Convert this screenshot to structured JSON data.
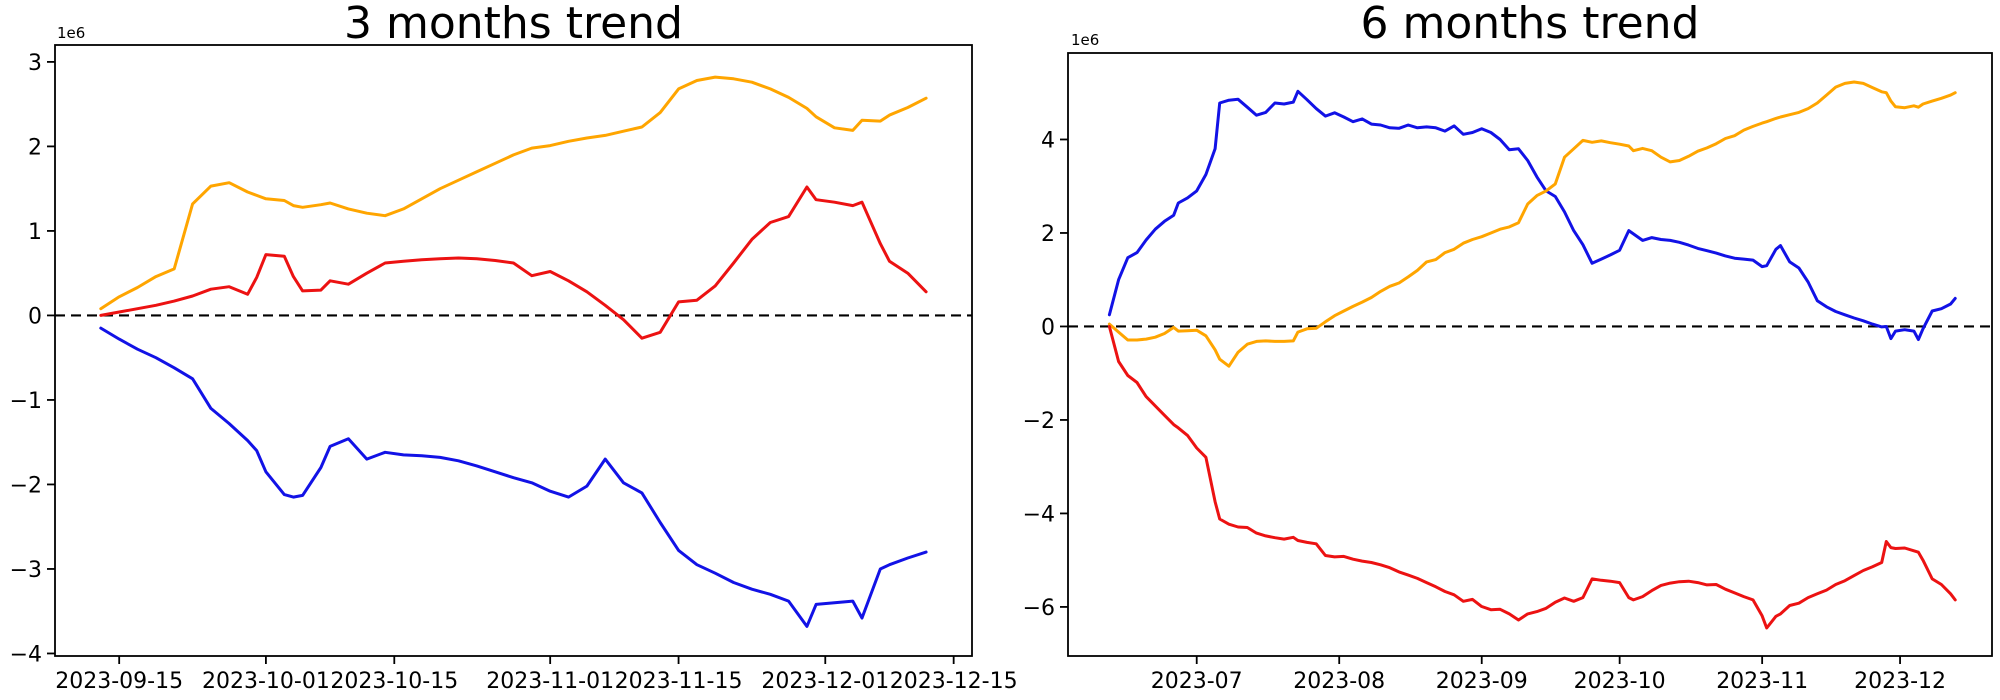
{
  "figure": {
    "background": "#ffffff"
  },
  "chart_data": [
    {
      "type": "line",
      "title": "3 months trend",
      "y_offset_label": "1e6",
      "y_unit_multiplier": 1000000,
      "xlim": [
        "2023-09-08",
        "2023-12-17"
      ],
      "ylim": [
        -4.03,
        3.2
      ],
      "grid": false,
      "legend": "none",
      "zero_line": {
        "show": true,
        "style": "dashed",
        "color": "#000000"
      },
      "x_ticks": [
        {
          "label": "2023-09-15",
          "date": "2023-09-15"
        },
        {
          "label": "2023-10-01",
          "date": "2023-10-01"
        },
        {
          "label": "2023-10-15",
          "date": "2023-10-15"
        },
        {
          "label": "2023-11-01",
          "date": "2023-11-01"
        },
        {
          "label": "2023-11-15",
          "date": "2023-11-15"
        },
        {
          "label": "2023-12-01",
          "date": "2023-12-01"
        },
        {
          "label": "2023-12-15",
          "date": "2023-12-15"
        }
      ],
      "y_ticks": [
        3,
        2,
        1,
        0,
        -1,
        -2,
        -3,
        -4
      ],
      "dates": [
        "2023-09-13",
        "2023-09-15",
        "2023-09-17",
        "2023-09-19",
        "2023-09-21",
        "2023-09-23",
        "2023-09-25",
        "2023-09-27",
        "2023-09-29",
        "2023-09-30",
        "2023-10-01",
        "2023-10-03",
        "2023-10-04",
        "2023-10-05",
        "2023-10-07",
        "2023-10-08",
        "2023-10-10",
        "2023-10-12",
        "2023-10-14",
        "2023-10-16",
        "2023-10-18",
        "2023-10-20",
        "2023-10-22",
        "2023-10-24",
        "2023-10-26",
        "2023-10-28",
        "2023-10-30",
        "2023-11-01",
        "2023-11-03",
        "2023-11-05",
        "2023-11-07",
        "2023-11-09",
        "2023-11-11",
        "2023-11-13",
        "2023-11-15",
        "2023-11-17",
        "2023-11-19",
        "2023-11-21",
        "2023-11-23",
        "2023-11-25",
        "2023-11-27",
        "2023-11-29",
        "2023-11-30",
        "2023-12-02",
        "2023-12-04",
        "2023-12-05",
        "2023-12-07",
        "2023-12-08",
        "2023-12-10",
        "2023-12-12"
      ],
      "series": [
        {
          "name": "series-orange",
          "color": "#ffa500",
          "values": [
            0.08,
            0.22,
            0.33,
            0.46,
            0.55,
            1.32,
            1.53,
            1.57,
            1.46,
            1.42,
            1.38,
            1.36,
            1.3,
            1.28,
            1.31,
            1.33,
            1.26,
            1.21,
            1.18,
            1.26,
            1.38,
            1.5,
            1.6,
            1.7,
            1.8,
            1.9,
            1.98,
            2.01,
            2.06,
            2.1,
            2.13,
            2.18,
            2.23,
            2.4,
            2.68,
            2.78,
            2.82,
            2.8,
            2.76,
            2.68,
            2.58,
            2.45,
            2.35,
            2.22,
            2.19,
            2.31,
            2.3,
            2.37,
            2.46,
            2.57
          ]
        },
        {
          "name": "series-red",
          "color": "#ec1212",
          "values": [
            0.0,
            0.04,
            0.08,
            0.12,
            0.17,
            0.23,
            0.31,
            0.34,
            0.25,
            0.45,
            0.72,
            0.7,
            0.46,
            0.29,
            0.3,
            0.41,
            0.37,
            0.5,
            0.62,
            0.64,
            0.66,
            0.67,
            0.68,
            0.67,
            0.65,
            0.62,
            0.47,
            0.52,
            0.41,
            0.28,
            0.12,
            -0.05,
            -0.27,
            -0.2,
            0.16,
            0.18,
            0.35,
            0.62,
            0.9,
            1.1,
            1.17,
            1.52,
            1.37,
            1.34,
            1.3,
            1.34,
            0.85,
            0.64,
            0.5,
            0.28
          ]
        },
        {
          "name": "series-blue",
          "color": "#1212e6",
          "values": [
            -0.15,
            -0.28,
            -0.4,
            -0.5,
            -0.62,
            -0.75,
            -1.1,
            -1.28,
            -1.48,
            -1.6,
            -1.85,
            -2.12,
            -2.15,
            -2.13,
            -1.8,
            -1.55,
            -1.46,
            -1.7,
            -1.62,
            -1.65,
            -1.66,
            -1.68,
            -1.72,
            -1.78,
            -1.85,
            -1.92,
            -1.98,
            -2.08,
            -2.15,
            -2.02,
            -1.7,
            -1.98,
            -2.1,
            -2.45,
            -2.78,
            -2.95,
            -3.05,
            -3.16,
            -3.24,
            -3.3,
            -3.38,
            -3.68,
            -3.42,
            -3.4,
            -3.38,
            -3.58,
            -3.0,
            -2.95,
            -2.87,
            -2.8
          ]
        }
      ]
    },
    {
      "type": "line",
      "title": "6 months trend",
      "y_offset_label": "1e6",
      "y_unit_multiplier": 1000000,
      "xlim": [
        "2023-06-03",
        "2023-12-21"
      ],
      "ylim": [
        -7.05,
        5.85
      ],
      "grid": false,
      "legend": "none",
      "zero_line": {
        "show": true,
        "style": "dashed",
        "color": "#000000"
      },
      "x_ticks": [
        {
          "label": "2023-07",
          "date": "2023-07-01"
        },
        {
          "label": "2023-08",
          "date": "2023-08-01"
        },
        {
          "label": "2023-09",
          "date": "2023-09-01"
        },
        {
          "label": "2023-10",
          "date": "2023-10-01"
        },
        {
          "label": "2023-11",
          "date": "2023-11-01"
        },
        {
          "label": "2023-12",
          "date": "2023-12-01"
        }
      ],
      "y_ticks": [
        4,
        2,
        0,
        -2,
        -4,
        -6
      ],
      "dates": [
        "2023-06-12",
        "2023-06-14",
        "2023-06-16",
        "2023-06-18",
        "2023-06-20",
        "2023-06-22",
        "2023-06-24",
        "2023-06-26",
        "2023-06-27",
        "2023-06-29",
        "2023-07-01",
        "2023-07-03",
        "2023-07-05",
        "2023-07-06",
        "2023-07-08",
        "2023-07-10",
        "2023-07-12",
        "2023-07-14",
        "2023-07-16",
        "2023-07-18",
        "2023-07-20",
        "2023-07-22",
        "2023-07-23",
        "2023-07-25",
        "2023-07-27",
        "2023-07-29",
        "2023-07-31",
        "2023-08-02",
        "2023-08-04",
        "2023-08-06",
        "2023-08-08",
        "2023-08-10",
        "2023-08-12",
        "2023-08-14",
        "2023-08-16",
        "2023-08-18",
        "2023-08-20",
        "2023-08-22",
        "2023-08-24",
        "2023-08-26",
        "2023-08-28",
        "2023-08-30",
        "2023-09-01",
        "2023-09-03",
        "2023-09-05",
        "2023-09-07",
        "2023-09-09",
        "2023-09-11",
        "2023-09-13",
        "2023-09-15",
        "2023-09-17",
        "2023-09-19",
        "2023-09-21",
        "2023-09-23",
        "2023-09-25",
        "2023-09-27",
        "2023-09-29",
        "2023-10-01",
        "2023-10-03",
        "2023-10-04",
        "2023-10-06",
        "2023-10-08",
        "2023-10-10",
        "2023-10-12",
        "2023-10-14",
        "2023-10-16",
        "2023-10-18",
        "2023-10-20",
        "2023-10-22",
        "2023-10-24",
        "2023-10-26",
        "2023-10-28",
        "2023-10-30",
        "2023-11-01",
        "2023-11-02",
        "2023-11-04",
        "2023-11-05",
        "2023-11-07",
        "2023-11-09",
        "2023-11-11",
        "2023-11-13",
        "2023-11-15",
        "2023-11-17",
        "2023-11-19",
        "2023-11-21",
        "2023-11-23",
        "2023-11-25",
        "2023-11-27",
        "2023-11-28",
        "2023-11-29",
        "2023-11-30",
        "2023-12-02",
        "2023-12-04",
        "2023-12-05",
        "2023-12-06",
        "2023-12-08",
        "2023-12-10",
        "2023-12-12",
        "2023-12-13"
      ],
      "series": [
        {
          "name": "series-blue",
          "color": "#1212e6",
          "values": [
            0.25,
            1.0,
            1.47,
            1.58,
            1.85,
            2.08,
            2.25,
            2.38,
            2.64,
            2.75,
            2.9,
            3.25,
            3.8,
            4.78,
            4.84,
            4.86,
            4.69,
            4.52,
            4.58,
            4.78,
            4.76,
            4.8,
            5.03,
            4.85,
            4.66,
            4.5,
            4.57,
            4.48,
            4.38,
            4.44,
            4.33,
            4.31,
            4.25,
            4.24,
            4.31,
            4.25,
            4.27,
            4.25,
            4.18,
            4.29,
            4.11,
            4.15,
            4.23,
            4.15,
            4.0,
            3.78,
            3.8,
            3.55,
            3.2,
            2.9,
            2.78,
            2.45,
            2.05,
            1.75,
            1.35,
            1.44,
            1.53,
            1.63,
            2.05,
            1.98,
            1.84,
            1.9,
            1.86,
            1.84,
            1.8,
            1.74,
            1.67,
            1.62,
            1.57,
            1.51,
            1.46,
            1.44,
            1.42,
            1.28,
            1.3,
            1.65,
            1.73,
            1.38,
            1.25,
            0.95,
            0.55,
            0.42,
            0.32,
            0.25,
            0.18,
            0.12,
            0.05,
            -0.01,
            0.0,
            -0.26,
            -0.1,
            -0.07,
            -0.1,
            -0.28,
            -0.05,
            0.33,
            0.38,
            0.48,
            0.6
          ]
        },
        {
          "name": "series-orange",
          "color": "#ffa500",
          "values": [
            0.05,
            -0.12,
            -0.29,
            -0.29,
            -0.27,
            -0.23,
            -0.15,
            -0.02,
            -0.1,
            -0.09,
            -0.08,
            -0.2,
            -0.5,
            -0.7,
            -0.85,
            -0.55,
            -0.38,
            -0.32,
            -0.31,
            -0.32,
            -0.32,
            -0.31,
            -0.12,
            -0.05,
            -0.04,
            0.1,
            0.23,
            0.33,
            0.43,
            0.52,
            0.62,
            0.75,
            0.86,
            0.93,
            1.06,
            1.2,
            1.38,
            1.43,
            1.58,
            1.65,
            1.78,
            1.86,
            1.92,
            2.0,
            2.08,
            2.13,
            2.22,
            2.62,
            2.8,
            2.9,
            3.05,
            3.62,
            3.8,
            3.98,
            3.94,
            3.97,
            3.93,
            3.9,
            3.86,
            3.76,
            3.81,
            3.76,
            3.62,
            3.52,
            3.55,
            3.64,
            3.75,
            3.82,
            3.91,
            4.02,
            4.08,
            4.2,
            4.28,
            4.35,
            4.38,
            4.45,
            4.48,
            4.53,
            4.58,
            4.66,
            4.78,
            4.95,
            5.12,
            5.2,
            5.23,
            5.2,
            5.11,
            5.02,
            5.0,
            4.82,
            4.7,
            4.68,
            4.72,
            4.69,
            4.76,
            4.82,
            4.88,
            4.95,
            5.0
          ]
        },
        {
          "name": "series-red",
          "color": "#ec1212",
          "values": [
            0.0,
            -0.75,
            -1.05,
            -1.2,
            -1.5,
            -1.7,
            -1.9,
            -2.1,
            -2.17,
            -2.33,
            -2.6,
            -2.8,
            -3.75,
            -4.12,
            -4.23,
            -4.29,
            -4.3,
            -4.42,
            -4.48,
            -4.52,
            -4.55,
            -4.51,
            -4.58,
            -4.62,
            -4.65,
            -4.9,
            -4.93,
            -4.92,
            -4.98,
            -5.02,
            -5.05,
            -5.1,
            -5.16,
            -5.25,
            -5.32,
            -5.39,
            -5.48,
            -5.57,
            -5.67,
            -5.74,
            -5.88,
            -5.84,
            -5.99,
            -6.06,
            -6.05,
            -6.15,
            -6.28,
            -6.15,
            -6.1,
            -6.03,
            -5.9,
            -5.81,
            -5.88,
            -5.8,
            -5.4,
            -5.43,
            -5.45,
            -5.48,
            -5.8,
            -5.85,
            -5.78,
            -5.65,
            -5.54,
            -5.49,
            -5.46,
            -5.45,
            -5.48,
            -5.53,
            -5.52,
            -5.62,
            -5.7,
            -5.78,
            -5.85,
            -6.19,
            -6.45,
            -6.2,
            -6.15,
            -5.97,
            -5.92,
            -5.8,
            -5.72,
            -5.64,
            -5.52,
            -5.44,
            -5.33,
            -5.22,
            -5.14,
            -5.05,
            -4.6,
            -4.73,
            -4.75,
            -4.74,
            -4.8,
            -4.83,
            -5.0,
            -5.4,
            -5.52,
            -5.72,
            -5.85
          ]
        }
      ]
    }
  ]
}
